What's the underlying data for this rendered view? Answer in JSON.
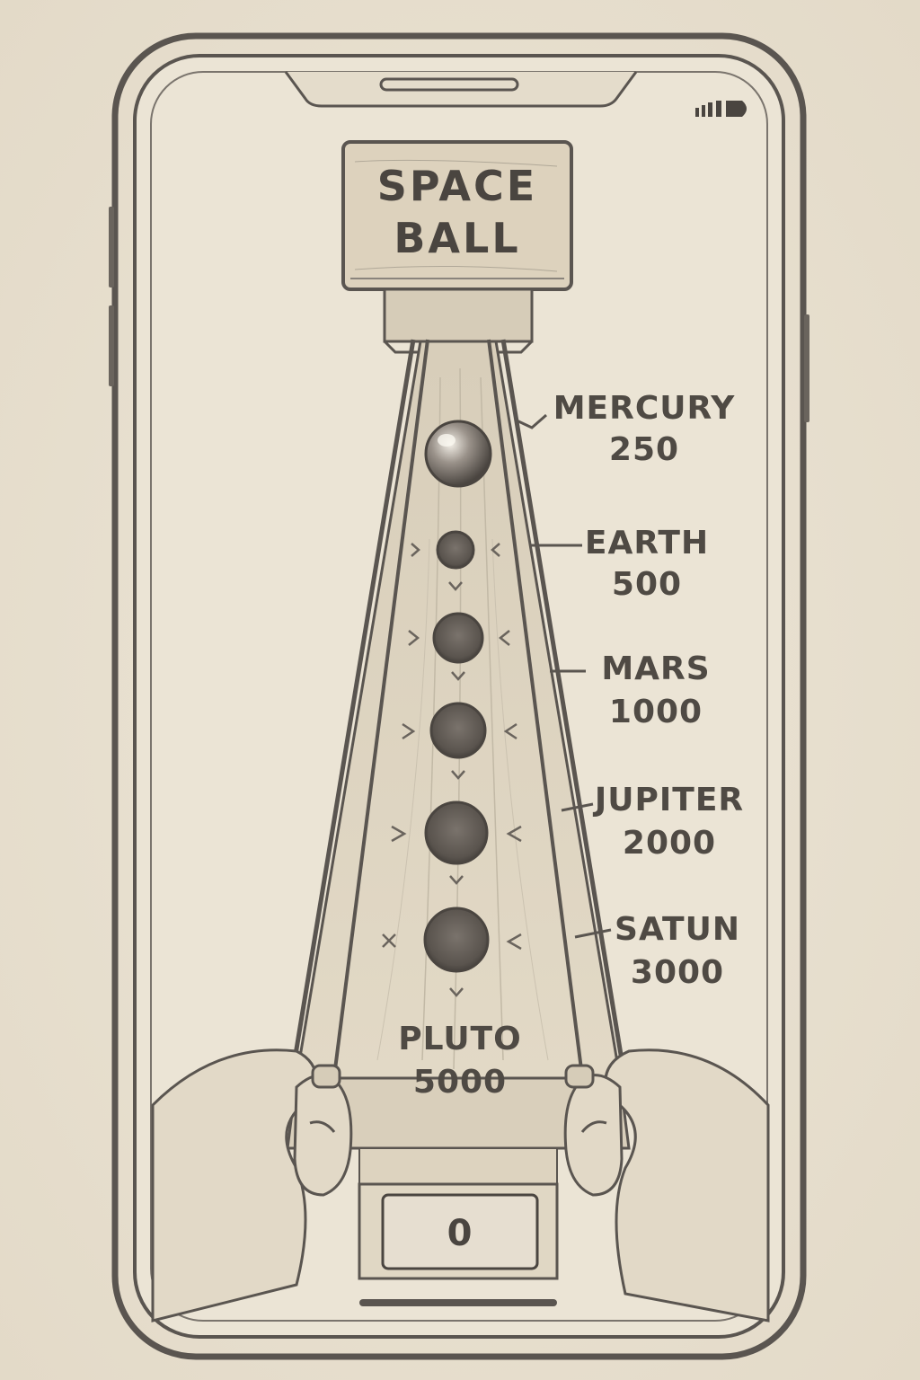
{
  "game": {
    "title_line1": "SPACE",
    "title_line2": "BALL",
    "score": "0"
  },
  "targets": [
    {
      "name": "MERCURY",
      "points": "250"
    },
    {
      "name": "EARTH",
      "points": "500"
    },
    {
      "name": "MARS",
      "points": "1000"
    },
    {
      "name": "JUPITER",
      "points": "2000"
    },
    {
      "name": "SATUN",
      "points": "3000"
    },
    {
      "name": "PLUTO",
      "points": "5000"
    }
  ],
  "colors": {
    "paper": "#e8e0d0",
    "pencil": "#5a5550",
    "wood": "#ddd3bf"
  },
  "icons": {
    "status": "signal-battery-icon"
  }
}
